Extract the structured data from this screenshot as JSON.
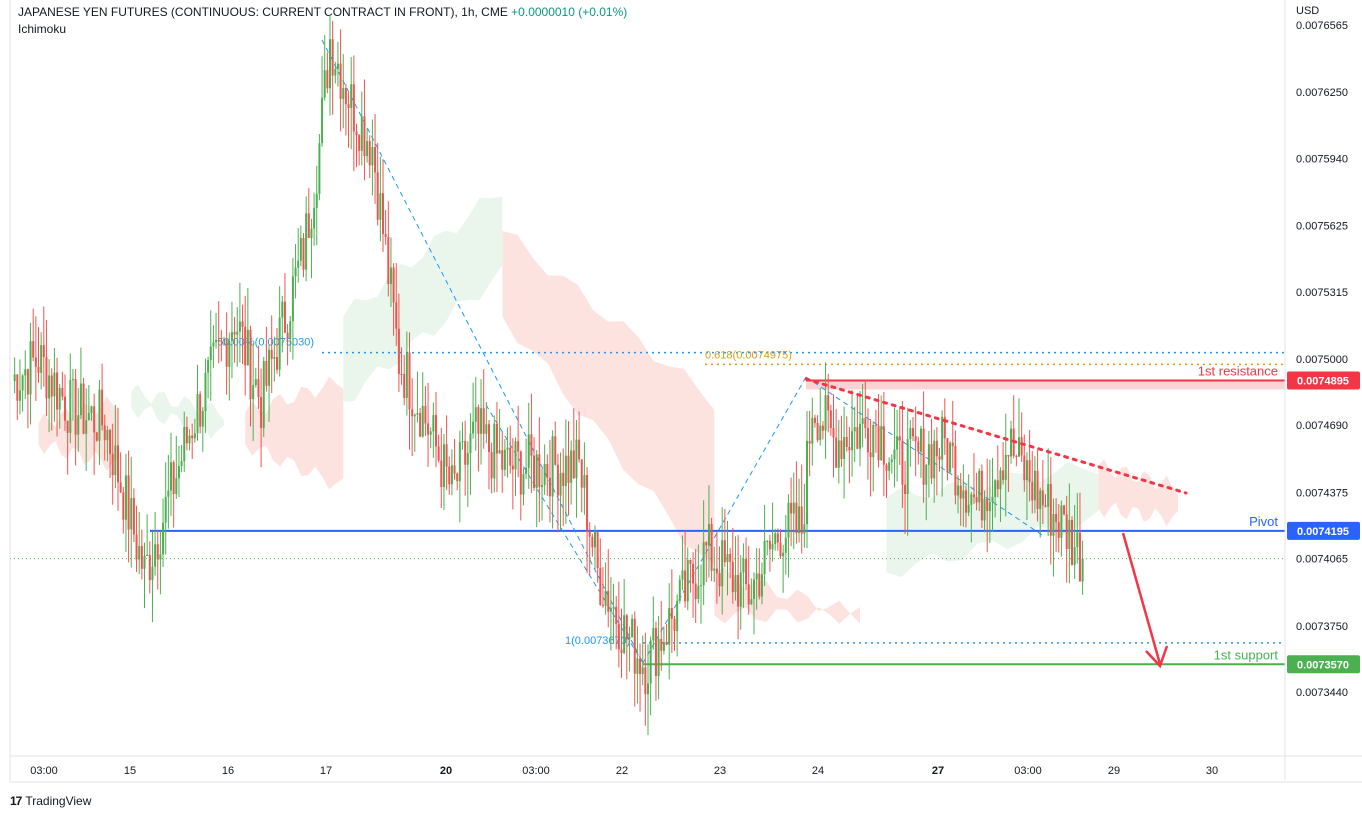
{
  "header": {
    "title": "JAPANESE YEN FUTURES (CONTINUOUS: CURRENT CONTRACT IN FRONT), 1h, CME",
    "change": "+0.0000010 (+0.01%)",
    "indicator": "Ichimoku"
  },
  "footer": {
    "brand": "TradingView",
    "logo_glyph": "17"
  },
  "colors": {
    "up": "#089981",
    "up_chart": "#4caf50",
    "down": "#ef5350",
    "resistance": "#f23645",
    "pivot": "#2962ff",
    "support": "#4caf50",
    "fib": "#2196f3",
    "fib_gold": "#d4a017",
    "cloud_red": "#fde0dd",
    "cloud_green": "#e8f5e9"
  },
  "chart_data": {
    "type": "candlestick",
    "currency": "USD",
    "y_ticks": [
      "0.0076565",
      "0.0076250",
      "0.0075940",
      "0.0075625",
      "0.0075315",
      "0.0075000",
      "0.0074690",
      "0.0074375",
      "0.0074065",
      "0.0073750",
      "0.0073440"
    ],
    "x_ticks": [
      "03:00",
      "15",
      "16",
      "17",
      "20",
      "03:00",
      "22",
      "23",
      "24",
      "27",
      "03:00",
      "29",
      "30"
    ],
    "x_tick_bold": [
      false,
      false,
      false,
      false,
      true,
      false,
      false,
      false,
      false,
      true,
      false,
      false,
      false
    ],
    "levels": [
      {
        "name": "1st resistance",
        "value": 0.0074895,
        "label": "0.0074895"
      },
      {
        "name": "Pivot",
        "value": 0.0074195,
        "label": "0.0074195"
      },
      {
        "name": "1st support",
        "value": 0.007357,
        "label": "0.0073570"
      }
    ],
    "fib_annotations": [
      {
        "text": "50.00%(0.0075030)",
        "value": 0.007503
      },
      {
        "text": "0.618(0.0074975)",
        "value": 0.0074975
      },
      {
        "text": "1(0.0073670)",
        "value": 0.007367
      }
    ],
    "anchors": [
      {
        "x": 0,
        "y": 0.00749
      },
      {
        "x": 10,
        "y": 0.0075
      },
      {
        "x": 22,
        "y": 0.007477
      },
      {
        "x": 35,
        "y": 0.00747
      },
      {
        "x": 50,
        "y": 0.0074
      },
      {
        "x": 56,
        "y": 0.007422
      },
      {
        "x": 68,
        "y": 0.00747
      },
      {
        "x": 84,
        "y": 0.00752
      },
      {
        "x": 94,
        "y": 0.00748
      },
      {
        "x": 110,
        "y": 0.00755
      },
      {
        "x": 116,
        "y": 0.0076
      },
      {
        "x": 120,
        "y": 0.00765
      },
      {
        "x": 128,
        "y": 0.00762
      },
      {
        "x": 136,
        "y": 0.0076
      },
      {
        "x": 146,
        "y": 0.0075
      },
      {
        "x": 155,
        "y": 0.007475
      },
      {
        "x": 166,
        "y": 0.007438
      },
      {
        "x": 175,
        "y": 0.007465
      },
      {
        "x": 186,
        "y": 0.00745
      },
      {
        "x": 196,
        "y": 0.00745
      },
      {
        "x": 214,
        "y": 0.00745
      },
      {
        "x": 221,
        "y": 0.0074
      },
      {
        "x": 232,
        "y": 0.00737
      },
      {
        "x": 239,
        "y": 0.007357
      },
      {
        "x": 252,
        "y": 0.007385
      },
      {
        "x": 262,
        "y": 0.00741
      },
      {
        "x": 278,
        "y": 0.00739
      },
      {
        "x": 290,
        "y": 0.00742
      },
      {
        "x": 298,
        "y": 0.00742
      },
      {
        "x": 302,
        "y": 0.00748
      },
      {
        "x": 310,
        "y": 0.007462
      },
      {
        "x": 326,
        "y": 0.00747
      },
      {
        "x": 334,
        "y": 0.00745
      },
      {
        "x": 352,
        "y": 0.00746
      },
      {
        "x": 364,
        "y": 0.007432
      },
      {
        "x": 376,
        "y": 0.00746
      },
      {
        "x": 388,
        "y": 0.007435
      },
      {
        "x": 398,
        "y": 0.00742
      },
      {
        "x": 404,
        "y": 0.0074065
      }
    ],
    "ichimoku_cloud": {
      "red_segments": [
        {
          "x": [
            10,
            40
          ],
          "upper": [
            0.00747,
            0.00748
          ],
          "lower": [
            0.00746,
            0.00745
          ]
        },
        {
          "x": [
            88,
            125
          ],
          "upper": [
            0.007475,
            0.00749
          ],
          "lower": [
            0.00746,
            0.00744
          ]
        },
        {
          "x": [
            185,
            265
          ],
          "upper": [
            0.00756,
            0.00748
          ],
          "lower": [
            0.00752,
            0.0074
          ]
        },
        {
          "x": [
            265,
            320
          ],
          "upper": [
            0.0074,
            0.00738
          ],
          "lower": [
            0.00738,
            0.00738
          ]
        },
        {
          "x": [
            410,
            440
          ],
          "upper": [
            0.00745,
            0.00744
          ],
          "lower": [
            0.00743,
            0.007425
          ]
        }
      ],
      "green_segments": [
        {
          "x": [
            45,
            80
          ],
          "upper": [
            0.007485,
            0.007475
          ],
          "lower": [
            0.007477,
            0.007465
          ]
        },
        {
          "x": [
            125,
            185
          ],
          "upper": [
            0.00752,
            0.00758
          ],
          "lower": [
            0.00748,
            0.00754
          ]
        },
        {
          "x": [
            330,
            410
          ],
          "upper": [
            0.007435,
            0.00745
          ],
          "lower": [
            0.0074,
            0.007425
          ]
        }
      ]
    },
    "current_price": 0.0074065
  }
}
